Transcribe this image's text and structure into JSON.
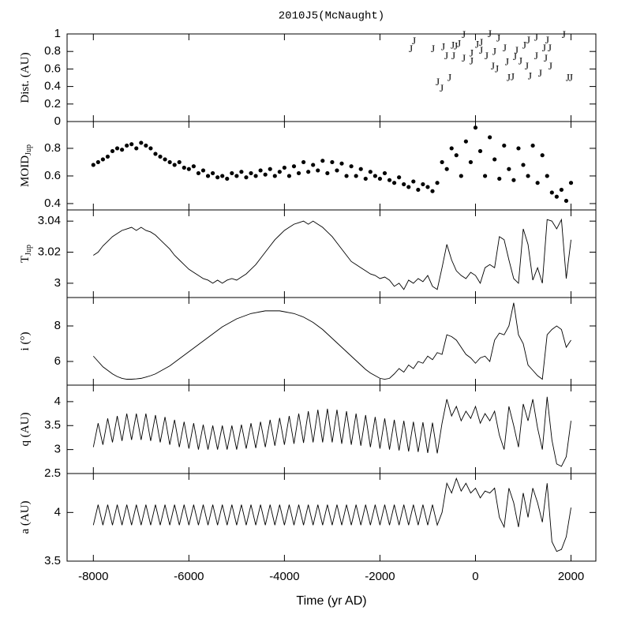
{
  "chart_data": [
    {
      "type": "scatter",
      "title": "2010J5(McNaught)",
      "ylabel": "Dist. (AU)",
      "marker": "J",
      "color": "#555555",
      "x": [
        -1287,
        -1353,
        -891,
        -677,
        -479,
        -347,
        -248,
        -413,
        -611,
        -462,
        -248,
        -83,
        33,
        116,
        297,
        479,
        611,
        396,
        231,
        116,
        -83,
        363,
        446,
        660,
        858,
        1023,
        1106,
        1271,
        1436,
        1469,
        1271,
        941,
        1073,
        693,
        776,
        1139,
        1353,
        1568,
        1848,
        1931,
        1997,
        -792,
        -545,
        -710,
        825,
        1551,
        1502
      ],
      "y": [
        0.91,
        0.82,
        0.82,
        0.84,
        0.86,
        0.88,
        0.98,
        0.85,
        0.74,
        0.74,
        0.71,
        0.77,
        0.87,
        0.89,
        0.99,
        0.94,
        0.83,
        0.79,
        0.74,
        0.8,
        0.68,
        0.62,
        0.59,
        0.67,
        0.8,
        0.86,
        0.92,
        0.95,
        0.83,
        0.71,
        0.74,
        0.68,
        0.62,
        0.49,
        0.5,
        0.51,
        0.54,
        0.62,
        0.98,
        0.49,
        0.49,
        0.44,
        0.49,
        0.37,
        0.73,
        0.83,
        0.92
      ],
      "ylim": [
        0,
        1
      ],
      "yticks": [
        0,
        0.2,
        0.4,
        0.6,
        0.8,
        1
      ]
    },
    {
      "type": "scatter",
      "ylabel": "MOID",
      "ylabel_sub": "Jup",
      "color": "#000000",
      "x": [
        -8000,
        -7900,
        -7800,
        -7700,
        -7600,
        -7500,
        -7400,
        -7300,
        -7200,
        -7100,
        -7000,
        -6900,
        -6800,
        -6700,
        -6600,
        -6500,
        -6400,
        -6300,
        -6200,
        -6100,
        -6000,
        -5900,
        -5800,
        -5700,
        -5600,
        -5500,
        -5400,
        -5300,
        -5200,
        -5100,
        -5000,
        -4900,
        -4800,
        -4700,
        -4600,
        -4500,
        -4400,
        -4300,
        -4200,
        -4100,
        -4000,
        -3900,
        -3800,
        -3700,
        -3600,
        -3500,
        -3400,
        -3300,
        -3200,
        -3100,
        -3000,
        -2900,
        -2800,
        -2700,
        -2600,
        -2500,
        -2400,
        -2300,
        -2200,
        -2100,
        -2000,
        -1900,
        -1800,
        -1700,
        -1600,
        -1500,
        -1400,
        -1300,
        -1200,
        -1100,
        -1000,
        -900,
        -800,
        -700,
        -600,
        -500,
        -400,
        -300,
        -200,
        -100,
        0,
        100,
        200,
        300,
        400,
        500,
        600,
        700,
        800,
        900,
        1000,
        1100,
        1200,
        1300,
        1400,
        1500,
        1600,
        1700,
        1800,
        1900,
        2000
      ],
      "y": [
        0.68,
        0.7,
        0.72,
        0.74,
        0.78,
        0.8,
        0.79,
        0.82,
        0.83,
        0.8,
        0.84,
        0.82,
        0.8,
        0.76,
        0.74,
        0.72,
        0.7,
        0.68,
        0.7,
        0.66,
        0.65,
        0.67,
        0.62,
        0.64,
        0.6,
        0.62,
        0.59,
        0.6,
        0.58,
        0.62,
        0.6,
        0.63,
        0.59,
        0.62,
        0.6,
        0.64,
        0.61,
        0.65,
        0.6,
        0.63,
        0.66,
        0.6,
        0.67,
        0.62,
        0.7,
        0.63,
        0.68,
        0.64,
        0.71,
        0.62,
        0.7,
        0.64,
        0.69,
        0.6,
        0.67,
        0.6,
        0.65,
        0.58,
        0.63,
        0.6,
        0.58,
        0.62,
        0.57,
        0.55,
        0.59,
        0.54,
        0.52,
        0.56,
        0.5,
        0.54,
        0.52,
        0.49,
        0.55,
        0.7,
        0.65,
        0.8,
        0.75,
        0.6,
        0.85,
        0.7,
        0.95,
        0.78,
        0.6,
        0.88,
        0.72,
        0.58,
        0.82,
        0.65,
        0.57,
        0.8,
        0.68,
        0.6,
        0.82,
        0.55,
        0.75,
        0.6,
        0.48,
        0.45,
        0.5,
        0.42,
        0.55
      ],
      "ylim": [
        0.354,
        0.994
      ],
      "yticks": [
        0.4,
        0.6,
        0.8
      ]
    },
    {
      "type": "line",
      "ylabel": "T",
      "ylabel_sub": "Jup",
      "color": "#000000",
      "x": [
        -8000,
        -7900,
        -7800,
        -7700,
        -7600,
        -7500,
        -7400,
        -7300,
        -7200,
        -7100,
        -7000,
        -6900,
        -6800,
        -6700,
        -6600,
        -6500,
        -6400,
        -6300,
        -6200,
        -6100,
        -6000,
        -5900,
        -5800,
        -5700,
        -5600,
        -5500,
        -5400,
        -5300,
        -5200,
        -5100,
        -5000,
        -4900,
        -4800,
        -4700,
        -4600,
        -4500,
        -4400,
        -4300,
        -4200,
        -4100,
        -4000,
        -3900,
        -3800,
        -3700,
        -3600,
        -3500,
        -3400,
        -3300,
        -3200,
        -3100,
        -3000,
        -2900,
        -2800,
        -2700,
        -2600,
        -2500,
        -2400,
        -2300,
        -2200,
        -2100,
        -2000,
        -1900,
        -1800,
        -1700,
        -1600,
        -1500,
        -1400,
        -1300,
        -1200,
        -1100,
        -1000,
        -900,
        -800,
        -700,
        -600,
        -500,
        -400,
        -300,
        -200,
        -100,
        0,
        100,
        200,
        300,
        400,
        500,
        600,
        700,
        800,
        900,
        1000,
        1100,
        1200,
        1300,
        1400,
        1500,
        1600,
        1700,
        1800,
        1900,
        2000
      ],
      "values": [
        3.018,
        3.02,
        3.024,
        3.027,
        3.03,
        3.032,
        3.034,
        3.035,
        3.036,
        3.034,
        3.036,
        3.034,
        3.033,
        3.031,
        3.028,
        3.025,
        3.022,
        3.018,
        3.015,
        3.012,
        3.009,
        3.007,
        3.005,
        3.003,
        3.002,
        3.0,
        3.002,
        3.0,
        3.002,
        3.003,
        3.002,
        3.004,
        3.006,
        3.009,
        3.012,
        3.016,
        3.02,
        3.024,
        3.028,
        3.031,
        3.034,
        3.036,
        3.038,
        3.039,
        3.04,
        3.038,
        3.04,
        3.038,
        3.036,
        3.033,
        3.03,
        3.026,
        3.022,
        3.018,
        3.014,
        3.012,
        3.01,
        3.008,
        3.006,
        3.005,
        3.003,
        3.004,
        3.002,
        2.998,
        3.0,
        2.996,
        3.002,
        3.0,
        3.003,
        3.001,
        3.005,
        2.998,
        2.996,
        3.01,
        3.025,
        3.015,
        3.008,
        3.005,
        3.003,
        3.007,
        3.005,
        3.0,
        3.01,
        3.012,
        3.01,
        3.03,
        3.028,
        3.015,
        3.003,
        3.0,
        3.035,
        3.025,
        3.002,
        3.01,
        3.0,
        3.041,
        3.04,
        3.035,
        3.041,
        3.003,
        3.028
      ],
      "ylim": [
        2.9908,
        3.0472
      ],
      "yticks": [
        3,
        3.02,
        3.04
      ]
    },
    {
      "type": "line",
      "ylabel": "i (°)",
      "color": "#000000",
      "x": [
        -8000,
        -7900,
        -7800,
        -7700,
        -7600,
        -7500,
        -7400,
        -7300,
        -7200,
        -7100,
        -7000,
        -6900,
        -6800,
        -6700,
        -6600,
        -6500,
        -6400,
        -6300,
        -6200,
        -6100,
        -6000,
        -5900,
        -5800,
        -5700,
        -5600,
        -5500,
        -5400,
        -5300,
        -5200,
        -5100,
        -5000,
        -4900,
        -4800,
        -4700,
        -4600,
        -4500,
        -4400,
        -4300,
        -4200,
        -4100,
        -4000,
        -3900,
        -3800,
        -3700,
        -3600,
        -3500,
        -3400,
        -3300,
        -3200,
        -3100,
        -3000,
        -2900,
        -2800,
        -2700,
        -2600,
        -2500,
        -2400,
        -2300,
        -2200,
        -2100,
        -2000,
        -1900,
        -1800,
        -1700,
        -1600,
        -1500,
        -1400,
        -1300,
        -1200,
        -1100,
        -1000,
        -900,
        -800,
        -700,
        -600,
        -500,
        -400,
        -300,
        -200,
        -100,
        0,
        100,
        200,
        300,
        400,
        500,
        600,
        700,
        800,
        900,
        1000,
        1100,
        1200,
        1300,
        1400,
        1500,
        1600,
        1700,
        1800,
        1900,
        2000
      ],
      "values": [
        6.3,
        6.0,
        5.7,
        5.5,
        5.3,
        5.15,
        5.05,
        5.0,
        5.0,
        5.02,
        5.05,
        5.12,
        5.2,
        5.3,
        5.45,
        5.6,
        5.75,
        5.95,
        6.15,
        6.35,
        6.55,
        6.75,
        6.95,
        7.15,
        7.35,
        7.55,
        7.75,
        7.95,
        8.1,
        8.25,
        8.4,
        8.5,
        8.6,
        8.7,
        8.75,
        8.8,
        8.85,
        8.85,
        8.85,
        8.85,
        8.8,
        8.75,
        8.7,
        8.6,
        8.5,
        8.35,
        8.2,
        8.0,
        7.8,
        7.55,
        7.3,
        7.05,
        6.8,
        6.55,
        6.3,
        6.05,
        5.8,
        5.55,
        5.35,
        5.2,
        5.05,
        5.0,
        5.05,
        5.3,
        5.6,
        5.4,
        5.8,
        5.6,
        6.0,
        5.9,
        6.3,
        6.1,
        6.5,
        6.4,
        7.5,
        7.4,
        7.2,
        6.8,
        6.4,
        6.2,
        5.9,
        6.2,
        6.3,
        6.0,
        7.2,
        7.6,
        7.5,
        8.0,
        9.3,
        7.5,
        7.0,
        5.8,
        5.5,
        5.2,
        5.0,
        7.5,
        7.8,
        8.0,
        7.8,
        6.8,
        7.2
      ],
      "ylim": [
        4.667,
        9.6
      ],
      "yticks": [
        6,
        8
      ]
    },
    {
      "type": "line",
      "ylabel": "q (AU)",
      "color": "#000000",
      "x": [
        -8000,
        -7900,
        -7800,
        -7700,
        -7600,
        -7500,
        -7400,
        -7300,
        -7200,
        -7100,
        -7000,
        -6900,
        -6800,
        -6700,
        -6600,
        -6500,
        -6400,
        -6300,
        -6200,
        -6100,
        -6000,
        -5900,
        -5800,
        -5700,
        -5600,
        -5500,
        -5400,
        -5300,
        -5200,
        -5100,
        -5000,
        -4900,
        -4800,
        -4700,
        -4600,
        -4500,
        -4400,
        -4300,
        -4200,
        -4100,
        -4000,
        -3900,
        -3800,
        -3700,
        -3600,
        -3500,
        -3400,
        -3300,
        -3200,
        -3100,
        -3000,
        -2900,
        -2800,
        -2700,
        -2600,
        -2500,
        -2400,
        -2300,
        -2200,
        -2100,
        -2000,
        -1900,
        -1800,
        -1700,
        -1600,
        -1500,
        -1400,
        -1300,
        -1200,
        -1100,
        -1000,
        -900,
        -800,
        -700,
        -600,
        -500,
        -400,
        -300,
        -200,
        -100,
        0,
        100,
        200,
        300,
        400,
        500,
        600,
        700,
        800,
        900,
        1000,
        1100,
        1200,
        1300,
        1400,
        1500,
        1600,
        1700,
        1800,
        1900,
        2000
      ],
      "values": [
        3.05,
        3.55,
        3.1,
        3.65,
        3.15,
        3.7,
        3.18,
        3.75,
        3.2,
        3.75,
        3.2,
        3.75,
        3.18,
        3.72,
        3.15,
        3.68,
        3.1,
        3.62,
        3.05,
        3.58,
        3.02,
        3.55,
        3.0,
        3.52,
        3.0,
        3.5,
        3.0,
        3.5,
        3.0,
        3.5,
        3.0,
        3.52,
        3.02,
        3.55,
        3.03,
        3.58,
        3.05,
        3.62,
        3.08,
        3.66,
        3.1,
        3.7,
        3.12,
        3.75,
        3.14,
        3.8,
        3.15,
        3.83,
        3.15,
        3.85,
        3.15,
        3.83,
        3.12,
        3.8,
        3.1,
        3.75,
        3.08,
        3.72,
        3.05,
        3.68,
        3.02,
        3.65,
        3.0,
        3.62,
        2.98,
        3.6,
        2.96,
        3.58,
        2.95,
        3.57,
        2.93,
        3.56,
        2.92,
        3.55,
        4.05,
        3.7,
        3.9,
        3.6,
        3.8,
        3.65,
        3.9,
        3.55,
        3.75,
        3.6,
        3.8,
        3.3,
        3.0,
        3.9,
        3.5,
        3.05,
        3.95,
        3.6,
        4.05,
        3.45,
        3.0,
        4.1,
        3.2,
        2.7,
        2.65,
        2.85,
        3.6
      ],
      "ylim": [
        2.5,
        4.344
      ],
      "yticks": [
        2.5,
        3,
        3.5,
        4
      ]
    },
    {
      "type": "line",
      "ylabel": "a (AU)",
      "xlabel": "Time (yr AD)",
      "color": "#000000",
      "x": [
        -8000,
        -7900,
        -7800,
        -7700,
        -7600,
        -7500,
        -7400,
        -7300,
        -7200,
        -7100,
        -7000,
        -6900,
        -6800,
        -6700,
        -6600,
        -6500,
        -6400,
        -6300,
        -6200,
        -6100,
        -6000,
        -5900,
        -5800,
        -5700,
        -5600,
        -5500,
        -5400,
        -5300,
        -5200,
        -5100,
        -5000,
        -4900,
        -4800,
        -4700,
        -4600,
        -4500,
        -4400,
        -4300,
        -4200,
        -4100,
        -4000,
        -3900,
        -3800,
        -3700,
        -3600,
        -3500,
        -3400,
        -3300,
        -3200,
        -3100,
        -3000,
        -2900,
        -2800,
        -2700,
        -2600,
        -2500,
        -2400,
        -2300,
        -2200,
        -2100,
        -2000,
        -1900,
        -1800,
        -1700,
        -1600,
        -1500,
        -1400,
        -1300,
        -1200,
        -1100,
        -1000,
        -900,
        -800,
        -700,
        -600,
        -500,
        -400,
        -300,
        -200,
        -100,
        0,
        100,
        200,
        300,
        400,
        500,
        600,
        700,
        800,
        900,
        1000,
        1100,
        1200,
        1300,
        1400,
        1500,
        1600,
        1700,
        1800,
        1900,
        2000
      ],
      "values": [
        3.87,
        4.08,
        3.87,
        4.08,
        3.87,
        4.08,
        3.87,
        4.08,
        3.87,
        4.08,
        3.87,
        4.08,
        3.87,
        4.08,
        3.87,
        4.08,
        3.87,
        4.08,
        3.87,
        4.08,
        3.87,
        4.08,
        3.87,
        4.08,
        3.87,
        4.08,
        3.87,
        4.08,
        3.87,
        4.08,
        3.87,
        4.08,
        3.87,
        4.08,
        3.87,
        4.08,
        3.87,
        4.08,
        3.87,
        4.08,
        3.87,
        4.08,
        3.87,
        4.08,
        3.87,
        4.08,
        3.87,
        4.08,
        3.87,
        4.08,
        3.87,
        4.08,
        3.87,
        4.08,
        3.87,
        4.08,
        3.87,
        4.08,
        3.87,
        4.08,
        3.87,
        4.08,
        3.87,
        4.08,
        3.87,
        4.08,
        3.87,
        4.08,
        3.87,
        4.08,
        3.87,
        4.08,
        3.87,
        4.0,
        4.3,
        4.2,
        4.35,
        4.22,
        4.3,
        4.2,
        4.25,
        4.15,
        4.22,
        4.2,
        4.25,
        3.95,
        3.85,
        4.25,
        4.1,
        3.85,
        4.2,
        3.95,
        4.25,
        4.1,
        3.9,
        4.3,
        3.7,
        3.6,
        3.62,
        3.75,
        4.05
      ],
      "ylim": [
        3.5,
        4.4
      ],
      "yticks": [
        3.5,
        4
      ],
      "xlim": [
        -8550,
        2520
      ],
      "xticks": [
        -8000,
        -6000,
        -4000,
        -2000,
        0,
        2000
      ]
    }
  ]
}
